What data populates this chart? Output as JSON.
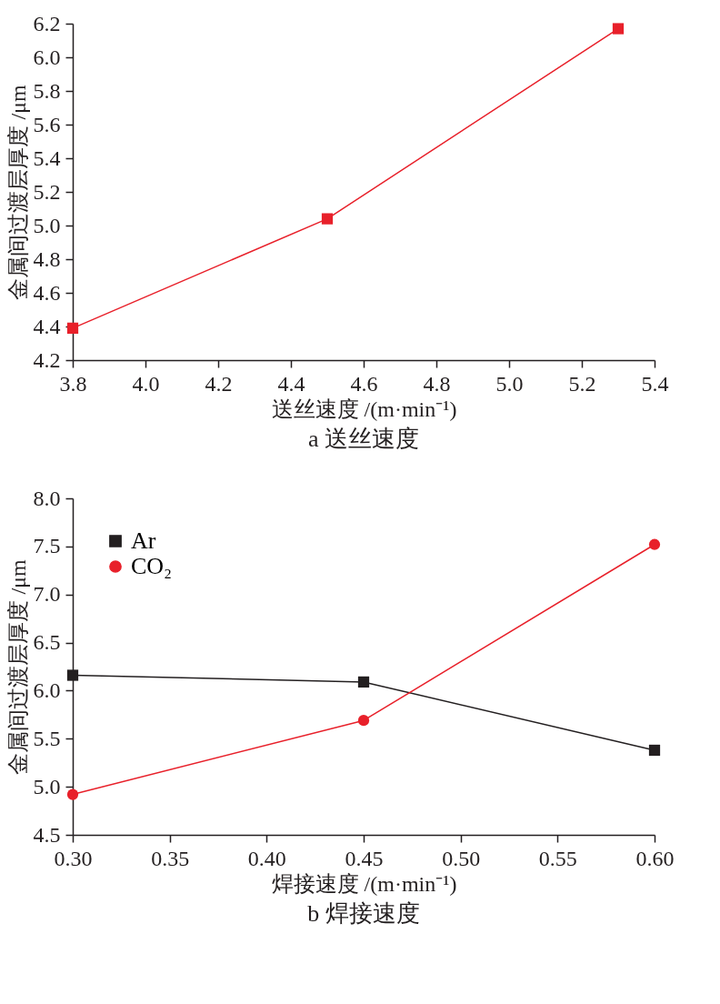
{
  "chart_data": [
    {
      "type": "line",
      "xlabel": "送丝速度 /(m·min⁻¹)",
      "ylabel": "金属间过渡层厚度 /μm",
      "annotations": [
        "a 送丝速度"
      ],
      "x": [
        3.8,
        4.5,
        5.3
      ],
      "series": [
        {
          "color": "#e8202a",
          "values": [
            4.39,
            5.04,
            6.17
          ],
          "marker": "square"
        }
      ],
      "xlim": [
        3.8,
        5.4
      ],
      "xticks": [
        3.8,
        {
          "value": 4,
          "label": "4.0"
        },
        4.2,
        4.4,
        4.6,
        4.8,
        {
          "value": 5,
          "label": "5.0"
        },
        5.2,
        5.4
      ],
      "ylim": [
        4.2,
        6.2
      ],
      "yticks": [
        4.2,
        4.4,
        4.6,
        4.8,
        {
          "value": 5,
          "label": "5.0"
        },
        5.2,
        5.4,
        5.6,
        5.8,
        {
          "value": 6,
          "label": "6.0"
        },
        6.2
      ],
      "grid": false,
      "legend": false,
      "line_style": "solid"
    },
    {
      "type": "line",
      "xlabel": "焊接速度 /(m·min⁻¹)",
      "ylabel": "金属间过渡层厚度 /μm",
      "annotations": [
        "b 焊接速度"
      ],
      "x": [
        0.3,
        0.45,
        0.6
      ],
      "series": [
        {
          "name": "Ar",
          "color": "#231f20",
          "values": [
            6.16,
            6.09,
            5.38
          ],
          "marker": "square"
        },
        {
          "name": "CO₂",
          "color": "#e8202a",
          "values": [
            4.92,
            5.69,
            7.52
          ],
          "marker": "circle"
        }
      ],
      "xlim": [
        0.3,
        0.6
      ],
      "xticks": [
        {
          "value": 0.3,
          "label": "0.30"
        },
        0.35,
        {
          "value": 0.4,
          "label": "0.40"
        },
        0.45,
        {
          "value": 0.5,
          "label": "0.50"
        },
        0.55,
        {
          "value": 0.6,
          "label": "0.60"
        }
      ],
      "ylim": [
        4.5,
        8.0
      ],
      "yticks": [
        4.5,
        {
          "value": 5,
          "label": "5.0"
        },
        5.5,
        {
          "value": 6,
          "label": "6.0"
        },
        6.5,
        {
          "value": 7,
          "label": "7.0"
        },
        7.5,
        {
          "value": 8,
          "label": "8.0"
        }
      ],
      "grid": false,
      "legend": "top left",
      "line_style": "solid"
    }
  ]
}
